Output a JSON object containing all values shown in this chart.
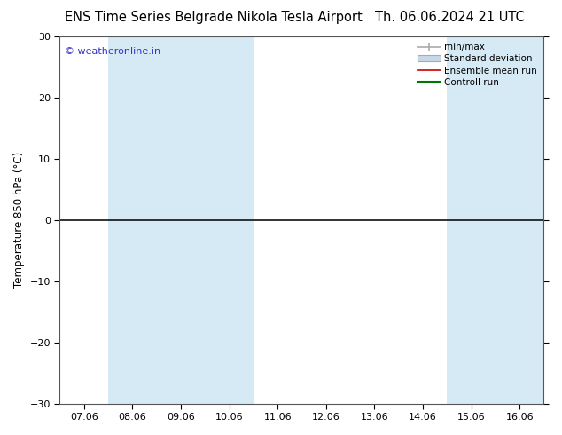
{
  "title_left": "ENS Time Series Belgrade Nikola Tesla Airport",
  "title_right": "Th. 06.06.2024 21 UTC",
  "ylabel": "Temperature 850 hPa (°C)",
  "watermark": "© weatheronline.in",
  "watermark_color": "#3333cc",
  "ylim": [
    -30,
    30
  ],
  "yticks": [
    -30,
    -20,
    -10,
    0,
    10,
    20,
    30
  ],
  "xtick_labels": [
    "07.06",
    "08.06",
    "09.06",
    "10.06",
    "11.06",
    "12.06",
    "13.06",
    "14.06",
    "15.06",
    "16.06"
  ],
  "blue_band_indices": [
    1,
    2,
    3,
    8,
    9
  ],
  "blue_band_color": "#d6eaf5",
  "zero_line_color": "#111111",
  "bg_color": "#ffffff",
  "plot_bg_color": "#ffffff",
  "title_fontsize": 10.5,
  "tick_fontsize": 8,
  "ylabel_fontsize": 8.5,
  "legend_fontsize": 7.5,
  "minmax_color": "#aaaaaa",
  "stddev_color": "#c8d8e8",
  "ensemble_color": "#cc0000",
  "control_color": "#007700"
}
